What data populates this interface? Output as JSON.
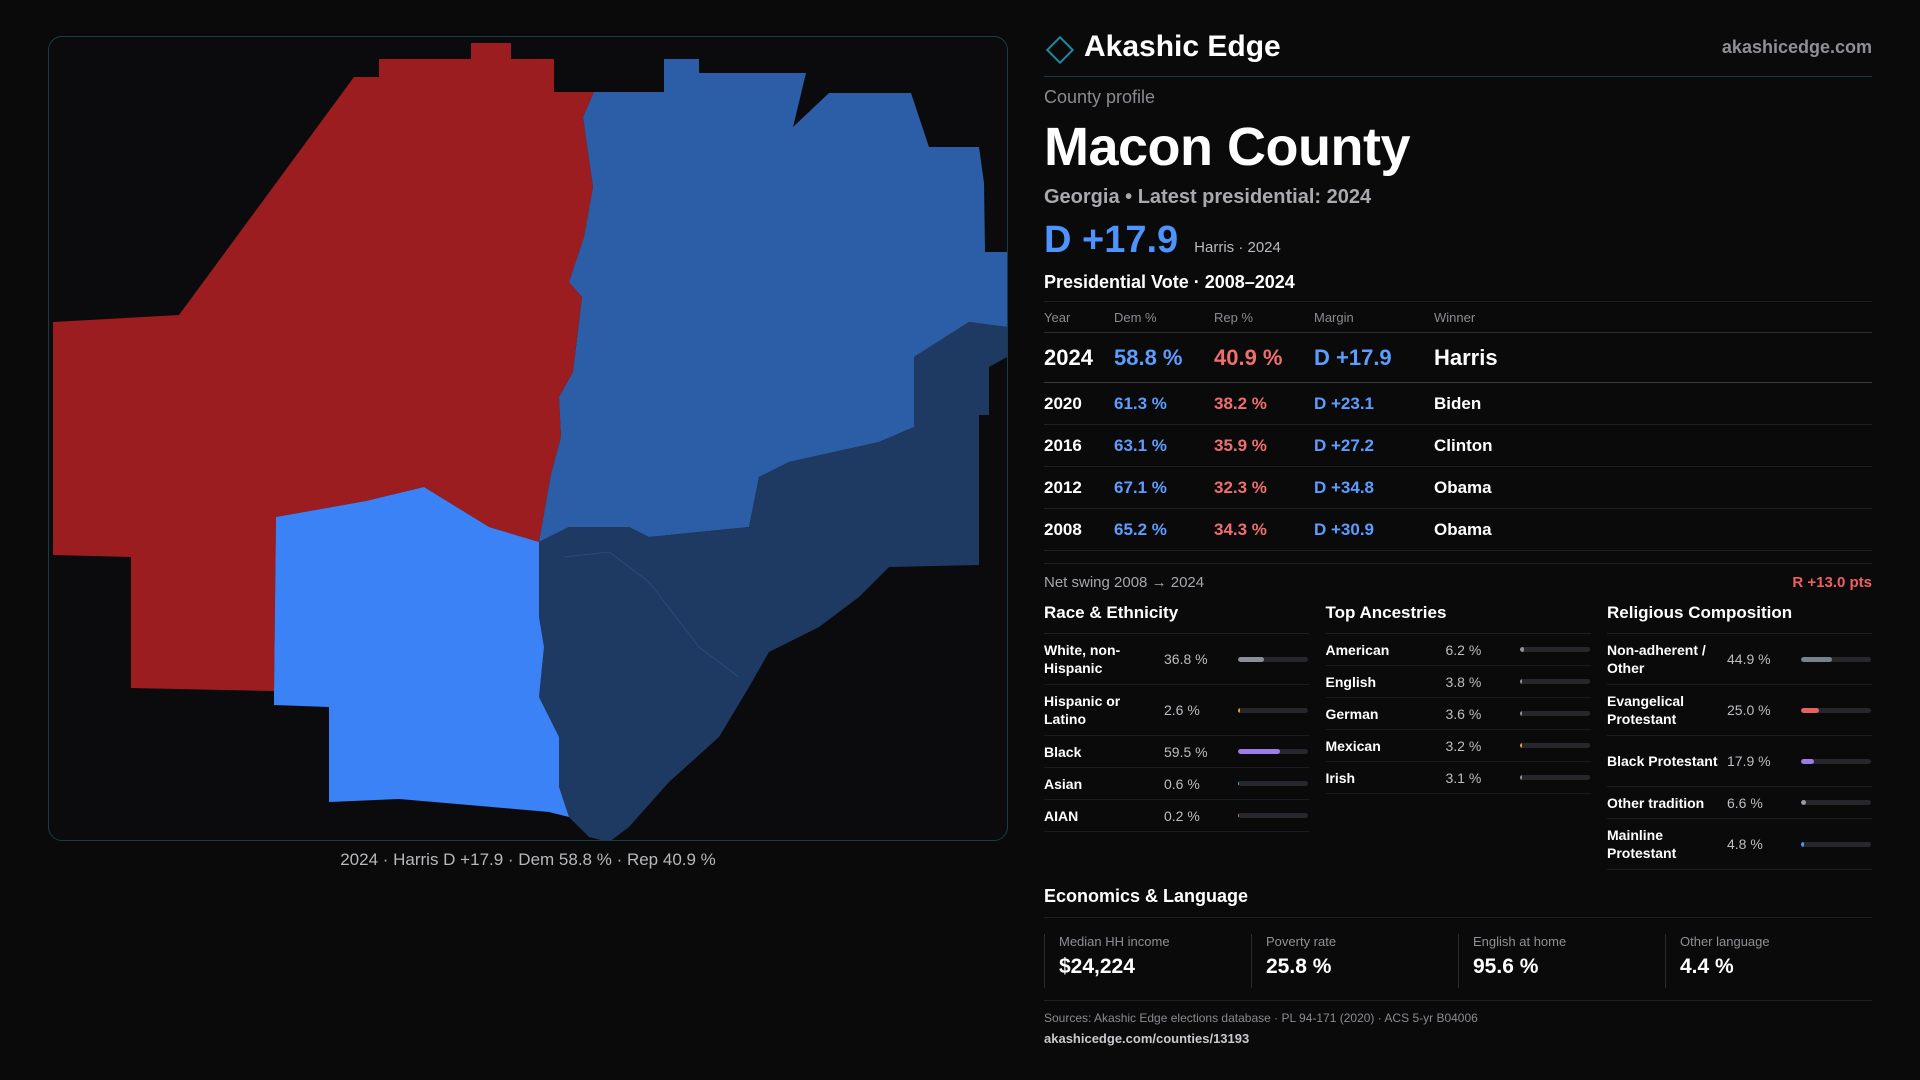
{
  "brand": {
    "name": "Akashic Edge",
    "url": "akashicedge.com"
  },
  "profile": {
    "kicker": "County profile",
    "title": "Macon County",
    "subtitle": "Georgia • Latest presidential: 2024",
    "margin_label": "D +17.9",
    "margin_note": "Harris · 2024"
  },
  "vote": {
    "title": "Presidential Vote · 2008–2024",
    "headers": {
      "year": "Year",
      "dem": "Dem %",
      "rep": "Rep %",
      "margin": "Margin",
      "winner": "Winner"
    },
    "rows": [
      {
        "year": "2024",
        "dem": "58.8 %",
        "rep": "40.9 %",
        "margin": "D +17.9",
        "winner": "Harris"
      },
      {
        "year": "2020",
        "dem": "61.3 %",
        "rep": "38.2 %",
        "margin": "D +23.1",
        "winner": "Biden"
      },
      {
        "year": "2016",
        "dem": "63.1 %",
        "rep": "35.9 %",
        "margin": "D +27.2",
        "winner": "Clinton"
      },
      {
        "year": "2012",
        "dem": "67.1 %",
        "rep": "32.3 %",
        "margin": "D +34.8",
        "winner": "Obama"
      },
      {
        "year": "2008",
        "dem": "65.2 %",
        "rep": "34.3 %",
        "margin": "D +30.9",
        "winner": "Obama"
      }
    ],
    "swing_label": "Net swing 2008 → 2024",
    "swing_value": "R +13.0 pts"
  },
  "race": {
    "title": "Race & Ethnicity",
    "items": [
      {
        "label": "White, non-Hispanic",
        "value": "36.8 %",
        "pct": 36.8,
        "color": "#8a8f99"
      },
      {
        "label": "Hispanic or Latino",
        "value": "2.6 %",
        "pct": 2.6,
        "color": "#e0a030"
      },
      {
        "label": "Black",
        "value": "59.5 %",
        "pct": 59.5,
        "color": "#9b7ce8"
      },
      {
        "label": "Asian",
        "value": "0.6 %",
        "pct": 0.6,
        "color": "#3fb3a6"
      },
      {
        "label": "AIAN",
        "value": "0.2 %",
        "pct": 0.2,
        "color": "#cc7755"
      }
    ]
  },
  "ancestry": {
    "title": "Top Ancestries",
    "items": [
      {
        "label": "American",
        "value": "6.2 %",
        "pct": 6.2,
        "color": "#8a8f99"
      },
      {
        "label": "English",
        "value": "3.8 %",
        "pct": 3.8,
        "color": "#8a8f99"
      },
      {
        "label": "German",
        "value": "3.6 %",
        "pct": 3.6,
        "color": "#8a8f99"
      },
      {
        "label": "Mexican",
        "value": "3.2 %",
        "pct": 3.2,
        "color": "#e0a030"
      },
      {
        "label": "Irish",
        "value": "3.1 %",
        "pct": 3.1,
        "color": "#8a8f99"
      }
    ]
  },
  "religion": {
    "title": "Religious Composition",
    "items": [
      {
        "label": "Non-adherent / Other",
        "value": "44.9 %",
        "pct": 44.9,
        "color": "#7a808c"
      },
      {
        "label": "Evangelical Protestant",
        "value": "25.0 %",
        "pct": 25.0,
        "color": "#e86060"
      },
      {
        "label": "Black Protestant",
        "value": "17.9 %",
        "pct": 17.9,
        "color": "#9b7ce8"
      },
      {
        "label": "Other tradition",
        "value": "6.6 %",
        "pct": 6.6,
        "color": "#9a9aa0"
      },
      {
        "label": "Mainline Protestant",
        "value": "4.8 %",
        "pct": 4.8,
        "color": "#4e94ff"
      }
    ]
  },
  "economics": {
    "title": "Economics & Language",
    "items": [
      {
        "label": "Median HH income",
        "value": "$24,224"
      },
      {
        "label": "Poverty rate",
        "value": "25.8 %"
      },
      {
        "label": "English at home",
        "value": "95.6 %"
      },
      {
        "label": "Other language",
        "value": "4.4 %"
      }
    ]
  },
  "map": {
    "caption": "2024 · Harris D +17.9 · Dem 58.8 % · Rep 40.9 %",
    "colors": {
      "rep": "#9c1d20",
      "dem_mid": "#2c5ea8",
      "dem_light": "#3b82f6",
      "dem_dark": "#1e3a63"
    }
  },
  "sources": {
    "text": "Sources: Akashic Edge elections database · PL 94-171 (2020) · ACS 5-yr B04006",
    "url": "akashicedge.com/counties/13193"
  }
}
